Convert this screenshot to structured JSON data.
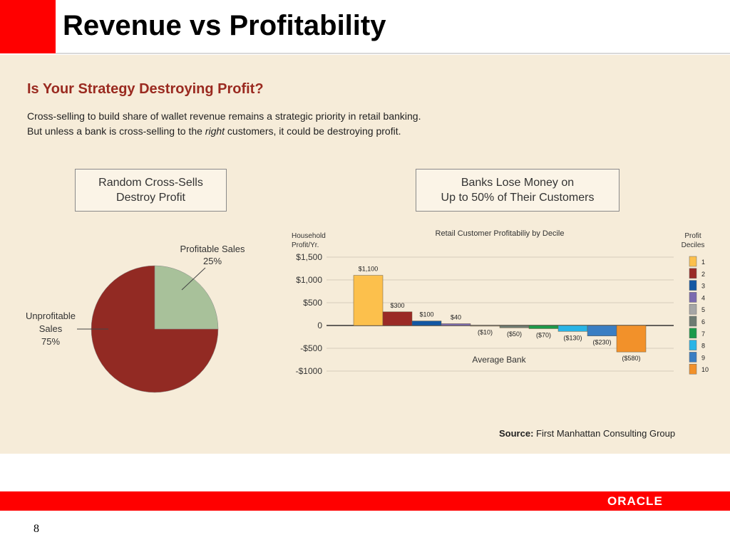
{
  "header": {
    "title": "Revenue vs Profitability"
  },
  "panel": {
    "heading": "Is Your Strategy Destroying Profit?",
    "line1": "Cross-selling to build share of wallet revenue remains a strategic priority in retail banking.",
    "line2_before": "But unless a bank is cross-selling to the ",
    "line2_emph": "right",
    "line2_after": " customers, it could be destroying profit.",
    "callout_left_1": "Random Cross-Sells",
    "callout_left_2": "Destroy Profit",
    "callout_right_1": "Banks Lose Money on",
    "callout_right_2": "Up to 50% of Their Customers",
    "source_label": "Source:",
    "source_text": " First Manhattan Consulting Group"
  },
  "footer": {
    "logo_text": "ORACLE",
    "page_number": "8"
  },
  "colors": {
    "pie_profitable": "#a8c19a",
    "pie_unprofitable": "#922a23",
    "decile": [
      "#fcc04c",
      "#9a2a26",
      "#1257a3",
      "#7b6aaf",
      "#a6a6a6",
      "#6d7b72",
      "#1b9a4a",
      "#29b4e6",
      "#3a7ec3",
      "#f2912a"
    ]
  },
  "chart_data": [
    {
      "type": "pie",
      "slices": [
        {
          "label_1": "Profitable Sales",
          "label_2": "25%",
          "value": 25
        },
        {
          "label_1": "Unprofitable",
          "label_2": "Sales",
          "label_3": "75%",
          "value": 75
        }
      ]
    },
    {
      "type": "bar",
      "title": "Retail Customer Profitabiliy by Decile",
      "ylabel_1": "Household",
      "ylabel_2": "Profit/Yr.",
      "xlabel": "Average Bank",
      "ylim": [
        -1000,
        1500
      ],
      "yticks": [
        {
          "v": 1500,
          "t": "$1,500"
        },
        {
          "v": 1000,
          "t": "$1,000"
        },
        {
          "v": 500,
          "t": "$500"
        },
        {
          "v": 0,
          "t": "0"
        },
        {
          "v": -500,
          "t": "-$500"
        },
        {
          "v": -1000,
          "t": "-$1000"
        }
      ],
      "categories": [
        "1",
        "2",
        "3",
        "4",
        "5",
        "6",
        "7",
        "8",
        "9",
        "10"
      ],
      "values": [
        1100,
        300,
        100,
        40,
        -10,
        -50,
        -70,
        -130,
        -230,
        -580
      ],
      "data_labels": [
        "$1,100",
        "$300",
        "$100",
        "$40",
        "($10)",
        "($50)",
        "($70)",
        "($130)",
        "($230)",
        "($580)"
      ],
      "legend_title_1": "Profit",
      "legend_title_2": "Deciles",
      "legend_position": "right"
    }
  ]
}
